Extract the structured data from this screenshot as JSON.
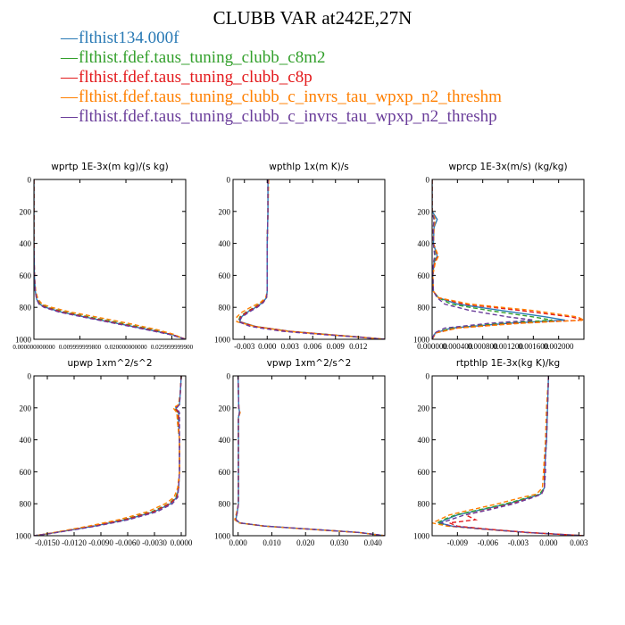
{
  "title": "CLUBB VAR at242E,27N",
  "legend": [
    {
      "label": "flthist134.000f",
      "color": "#2a7ab5"
    },
    {
      "label": "flthist.fdef.taus_tuning_clubb_c8m2",
      "color": "#33a02c"
    },
    {
      "label": "flthist.fdef.taus_tuning_clubb_c8p",
      "color": "#e31a1c"
    },
    {
      "label": "flthist.fdef.taus_tuning_clubb_c_invrs_tau_wpxp_n2_threshm",
      "color": "#ff7f00"
    },
    {
      "label": "flthist.fdef.taus_tuning_clubb_c_invrs_tau_wpxp_n2_threshp",
      "color": "#6a3d9a"
    }
  ],
  "chart_data": [
    {
      "type": "line",
      "title": "wprtp  1E-3x(m kg)/(s kg)",
      "xlim": [
        0,
        0.033
      ],
      "ylim": [
        1000,
        0
      ],
      "xticks": [
        "0.000000000000",
        "0.009999999800",
        "0.020000000000",
        "0.029999999900"
      ],
      "xtick_values": [
        0,
        0.01,
        0.02,
        0.03
      ],
      "yticks": [
        "0",
        "200",
        "400",
        "600",
        "800",
        "1000"
      ],
      "ytick_values": [
        0,
        200,
        400,
        600,
        800,
        1000
      ],
      "y": [
        0,
        200,
        400,
        600,
        700,
        750,
        780,
        800,
        830,
        860,
        900,
        940,
        970,
        990,
        1000
      ],
      "series": [
        {
          "color": "#2a7ab5",
          "values": [
            0,
            0,
            0,
            0.0001,
            0.0003,
            0.0006,
            0.0012,
            0.0025,
            0.006,
            0.011,
            0.018,
            0.025,
            0.03,
            0.032,
            0.033
          ]
        },
        {
          "color": "#33a02c",
          "values": [
            0,
            0,
            0,
            0.0001,
            0.0003,
            0.0007,
            0.0014,
            0.003,
            0.0068,
            0.012,
            0.019,
            0.026,
            0.03,
            0.032,
            0.033
          ]
        },
        {
          "color": "#e31a1c",
          "values": [
            0,
            0,
            0,
            0.0001,
            0.0003,
            0.0006,
            0.0012,
            0.0026,
            0.0062,
            0.0112,
            0.0182,
            0.0252,
            0.03,
            0.032,
            0.033
          ]
        },
        {
          "color": "#ff7f00",
          "values": [
            0,
            0,
            0,
            0.0001,
            0.0004,
            0.0009,
            0.0018,
            0.0038,
            0.008,
            0.0135,
            0.0205,
            0.0268,
            0.0305,
            0.032,
            0.033
          ]
        },
        {
          "color": "#6a3d9a",
          "values": [
            0,
            0,
            0,
            0.0001,
            0.0003,
            0.0006,
            0.0011,
            0.0022,
            0.0055,
            0.0105,
            0.0175,
            0.0245,
            0.0295,
            0.0318,
            0.033
          ]
        }
      ]
    },
    {
      "type": "line",
      "title": "wpthlp  1x(m K)/s",
      "xlim": [
        -0.0045,
        0.0155
      ],
      "ylim": [
        1000,
        0
      ],
      "xticks": [
        "-0.003",
        "0.000",
        "0.003",
        "0.006",
        "0.009",
        "0.012"
      ],
      "xtick_values": [
        -0.003,
        0,
        0.003,
        0.006,
        0.009,
        0.012
      ],
      "yticks": [
        "0",
        "200",
        "400",
        "600",
        "800",
        "1000"
      ],
      "ytick_values": [
        0,
        200,
        400,
        600,
        800,
        1000
      ],
      "y": [
        0,
        200,
        400,
        600,
        700,
        740,
        770,
        800,
        830,
        860,
        890,
        920,
        950,
        970,
        985,
        1000
      ],
      "series": [
        {
          "color": "#2a7ab5",
          "values": [
            0.0001,
            0.0001,
            0,
            0,
            0,
            -0.0001,
            -0.0006,
            -0.0015,
            -0.0026,
            -0.0034,
            -0.0036,
            -0.0015,
            0.003,
            0.008,
            0.012,
            0.0155
          ]
        },
        {
          "color": "#33a02c",
          "values": [
            0.0001,
            0.0001,
            0,
            0,
            0,
            -0.0001,
            -0.0007,
            -0.0017,
            -0.0028,
            -0.0036,
            -0.0038,
            -0.0016,
            0.0028,
            0.0078,
            0.0118,
            0.0155
          ]
        },
        {
          "color": "#e31a1c",
          "values": [
            0.0001,
            0.0001,
            0,
            0,
            0,
            -0.0001,
            -0.0006,
            -0.0016,
            -0.0027,
            -0.0035,
            -0.0037,
            -0.0016,
            0.0029,
            0.0079,
            0.012,
            0.0155
          ]
        },
        {
          "color": "#ff7f00",
          "values": [
            0.0002,
            0.0001,
            0,
            0,
            0,
            -0.0002,
            -0.0009,
            -0.0022,
            -0.0033,
            -0.004,
            -0.004,
            -0.0016,
            0.0027,
            0.0077,
            0.0118,
            0.0155
          ]
        },
        {
          "color": "#6a3d9a",
          "values": [
            0.0001,
            0.0001,
            0,
            0,
            0,
            -0.0001,
            -0.0005,
            -0.0013,
            -0.0024,
            -0.0033,
            -0.0038,
            -0.0022,
            0.002,
            0.0072,
            0.0116,
            0.0155
          ]
        }
      ]
    },
    {
      "type": "line",
      "title": "wprcp  1E-3x(m/s) (kg/kg)",
      "xlim": [
        0,
        0.0024
      ],
      "ylim": [
        1000,
        0
      ],
      "xticks": [
        "0.000000",
        "0.000400",
        "0.000800",
        "0.001200",
        "0.001600",
        "0.002000"
      ],
      "xtick_values": [
        0,
        0.0004,
        0.0008,
        0.0012,
        0.0016,
        0.002
      ],
      "yticks": [
        "0",
        "200",
        "400",
        "600",
        "800",
        "1000"
      ],
      "ytick_values": [
        0,
        200,
        400,
        600,
        800,
        1000
      ],
      "y": [
        0,
        200,
        250,
        300,
        400,
        480,
        520,
        600,
        700,
        740,
        780,
        820,
        860,
        880,
        900,
        930,
        960,
        1000
      ],
      "series": [
        {
          "color": "#2a7ab5",
          "values": [
            0,
            0,
            8e-05,
            3e-05,
            2e-05,
            8e-05,
            3e-05,
            1e-05,
            2e-05,
            0.0001,
            0.0004,
            0.0011,
            0.0018,
            0.0021,
            0.0012,
            0.0003,
            5e-05,
            0
          ]
        },
        {
          "color": "#33a02c",
          "values": [
            0,
            0,
            3e-05,
            2e-05,
            2e-05,
            5e-05,
            3e-05,
            1e-05,
            2e-05,
            0.0001,
            0.0003,
            0.0009,
            0.0016,
            0.0019,
            0.0011,
            0.0003,
            5e-05,
            0
          ]
        },
        {
          "color": "#e31a1c",
          "values": [
            0,
            0,
            4e-05,
            2e-05,
            2e-05,
            9e-05,
            4e-05,
            1e-05,
            2e-05,
            0.0001,
            0.0005,
            0.0014,
            0.0022,
            0.0024,
            0.0013,
            0.0004,
            6e-05,
            0
          ]
        },
        {
          "color": "#ff7f00",
          "values": [
            0,
            0,
            5e-05,
            3e-05,
            2e-05,
            0.0001,
            5e-05,
            1e-05,
            2e-05,
            0.0001,
            0.0006,
            0.0016,
            0.0023,
            0.0024,
            0.0014,
            0.0004,
            6e-05,
            0
          ]
        },
        {
          "color": "#6a3d9a",
          "values": [
            0,
            0,
            3e-05,
            2e-05,
            2e-05,
            4e-05,
            2e-05,
            1e-05,
            2e-05,
            8e-05,
            0.0002,
            0.0006,
            0.0012,
            0.0016,
            0.0009,
            0.0002,
            4e-05,
            0
          ]
        }
      ]
    },
    {
      "type": "line",
      "title": "upwp  1xm^2/s^2",
      "xlim": [
        -0.0165,
        0.0005
      ],
      "ylim": [
        1000,
        0
      ],
      "xticks": [
        "-0.0150",
        "-0.0120",
        "-0.0090",
        "-0.0060",
        "-0.0030",
        "0.0000"
      ],
      "xtick_values": [
        -0.015,
        -0.012,
        -0.009,
        -0.006,
        -0.003,
        0
      ],
      "yticks": [
        "0",
        "200",
        "400",
        "600",
        "800",
        "1000"
      ],
      "ytick_values": [
        0,
        200,
        400,
        600,
        800,
        1000
      ],
      "y": [
        0,
        100,
        180,
        200,
        230,
        300,
        400,
        600,
        700,
        760,
        800,
        850,
        900,
        940,
        970,
        990,
        1000
      ],
      "series": [
        {
          "color": "#2a7ab5",
          "values": [
            0,
            -0.0001,
            -0.0002,
            -0.0006,
            -0.0003,
            -0.0003,
            -0.0002,
            -0.0002,
            -0.0003,
            -0.0005,
            -0.0012,
            -0.003,
            -0.0062,
            -0.0098,
            -0.013,
            -0.0152,
            -0.0165
          ]
        },
        {
          "color": "#33a02c",
          "values": [
            0,
            -0.0001,
            -0.0003,
            -0.0008,
            -0.0004,
            -0.0004,
            -0.0002,
            -0.0002,
            -0.0003,
            -0.0006,
            -0.0014,
            -0.0033,
            -0.0065,
            -0.01,
            -0.0131,
            -0.0152,
            -0.0165
          ]
        },
        {
          "color": "#e31a1c",
          "values": [
            0,
            -0.0001,
            -0.0002,
            -0.0007,
            -0.0003,
            -0.0003,
            -0.0002,
            -0.0002,
            -0.0003,
            -0.0005,
            -0.0013,
            -0.0031,
            -0.0063,
            -0.0099,
            -0.013,
            -0.0152,
            -0.0165
          ]
        },
        {
          "color": "#ff7f00",
          "values": [
            0,
            -0.0001,
            -0.0003,
            -0.0009,
            -0.0005,
            -0.0004,
            -0.0002,
            -0.0002,
            -0.0004,
            -0.0008,
            -0.0018,
            -0.0038,
            -0.007,
            -0.0104,
            -0.0133,
            -0.0153,
            -0.0165
          ]
        },
        {
          "color": "#6a3d9a",
          "values": [
            0,
            -0.0001,
            -0.0002,
            -0.0005,
            -0.0002,
            -0.0002,
            -0.0002,
            -0.0002,
            -0.0003,
            -0.0004,
            -0.001,
            -0.0027,
            -0.0059,
            -0.0095,
            -0.0128,
            -0.0151,
            -0.0165
          ]
        }
      ]
    },
    {
      "type": "line",
      "title": "vpwp  1xm^2/s^2",
      "xlim": [
        -0.0015,
        0.0435
      ],
      "ylim": [
        1000,
        0
      ],
      "xticks": [
        "0.000",
        "0.010",
        "0.020",
        "0.030",
        "0.040"
      ],
      "xtick_values": [
        0,
        0.01,
        0.02,
        0.03,
        0.04
      ],
      "yticks": [
        "0",
        "200",
        "400",
        "600",
        "800",
        "1000"
      ],
      "ytick_values": [
        0,
        200,
        400,
        600,
        800,
        1000
      ],
      "y": [
        0,
        200,
        230,
        260,
        400,
        600,
        800,
        860,
        900,
        920,
        940,
        960,
        980,
        1000
      ],
      "series": [
        {
          "color": "#2a7ab5",
          "values": [
            0,
            0.0002,
            0.0005,
            0.0001,
            0.0001,
            0.0001,
            0.0001,
            -0.0003,
            -0.0007,
            0.0005,
            0.008,
            0.022,
            0.036,
            0.0435
          ]
        },
        {
          "color": "#33a02c",
          "values": [
            0,
            0.0002,
            0.0004,
            0.0001,
            0.0001,
            0.0001,
            0.0001,
            -0.0004,
            -0.0009,
            0.0003,
            0.0078,
            0.0218,
            0.0358,
            0.0435
          ]
        },
        {
          "color": "#e31a1c",
          "values": [
            0,
            0.0002,
            0.0005,
            0.0001,
            0.0001,
            0.0001,
            0.0001,
            -0.0003,
            -0.0008,
            0.0004,
            0.0079,
            0.0219,
            0.0359,
            0.0435
          ]
        },
        {
          "color": "#ff7f00",
          "values": [
            0,
            0.0002,
            0.0006,
            0.0001,
            0.0001,
            0.0001,
            0.0001,
            -0.0005,
            -0.001,
            0.0002,
            0.0076,
            0.0216,
            0.0357,
            0.0435
          ]
        },
        {
          "color": "#6a3d9a",
          "values": [
            0,
            0.0002,
            0.0004,
            0.0001,
            0.0001,
            0.0001,
            0.0001,
            -0.0003,
            -0.0006,
            0.0006,
            0.0081,
            0.0221,
            0.0361,
            0.0435
          ]
        }
      ]
    },
    {
      "type": "line",
      "title": "rtpthlp  1E-3x(kg K)/kg",
      "xlim": [
        -0.0115,
        0.0035
      ],
      "ylim": [
        1000,
        0
      ],
      "xticks": [
        "-0.009",
        "-0.006",
        "-0.003",
        "0.000",
        "0.003"
      ],
      "xtick_values": [
        -0.009,
        -0.006,
        -0.003,
        0,
        0.003
      ],
      "yticks": [
        "0",
        "200",
        "400",
        "600",
        "800",
        "1000"
      ],
      "ytick_values": [
        0,
        200,
        400,
        600,
        800,
        1000
      ],
      "y": [
        0,
        200,
        400,
        500,
        600,
        700,
        740,
        760,
        800,
        840,
        870,
        900,
        920,
        940,
        960,
        980,
        1000
      ],
      "series": [
        {
          "color": "#2a7ab5",
          "values": [
            0,
            -0.0001,
            -0.0002,
            -0.0003,
            -0.0004,
            -0.0004,
            -0.0008,
            -0.0018,
            -0.004,
            -0.0068,
            -0.009,
            -0.0102,
            -0.0108,
            -0.0095,
            -0.006,
            -0.002,
            0.0035
          ]
        },
        {
          "color": "#33a02c",
          "values": [
            0,
            -0.0001,
            -0.0002,
            -0.0003,
            -0.0004,
            -0.0004,
            -0.0009,
            -0.002,
            -0.0042,
            -0.007,
            -0.0092,
            -0.0104,
            -0.011,
            -0.0097,
            -0.0061,
            -0.0021,
            0.0035
          ]
        },
        {
          "color": "#e31a1c",
          "values": [
            0,
            -0.0001,
            -0.0002,
            -0.0003,
            -0.0004,
            -0.0004,
            -0.0007,
            -0.0016,
            -0.0036,
            -0.0062,
            -0.0082,
            -0.0072,
            -0.0098,
            -0.009,
            -0.0058,
            -0.0019,
            0.0035
          ]
        },
        {
          "color": "#ff7f00",
          "values": [
            0,
            -0.0002,
            -0.0003,
            -0.0004,
            -0.0005,
            -0.0006,
            -0.0012,
            -0.0026,
            -0.005,
            -0.0078,
            -0.0098,
            -0.0108,
            -0.0115,
            -0.01,
            -0.0063,
            -0.0022,
            0.0035
          ]
        },
        {
          "color": "#6a3d9a",
          "values": [
            0,
            -0.0001,
            -0.0002,
            -0.0003,
            -0.0003,
            -0.0004,
            -0.0007,
            -0.0015,
            -0.0034,
            -0.006,
            -0.0083,
            -0.0097,
            -0.0106,
            -0.0096,
            -0.0062,
            -0.0021,
            0.0035
          ]
        }
      ]
    }
  ]
}
